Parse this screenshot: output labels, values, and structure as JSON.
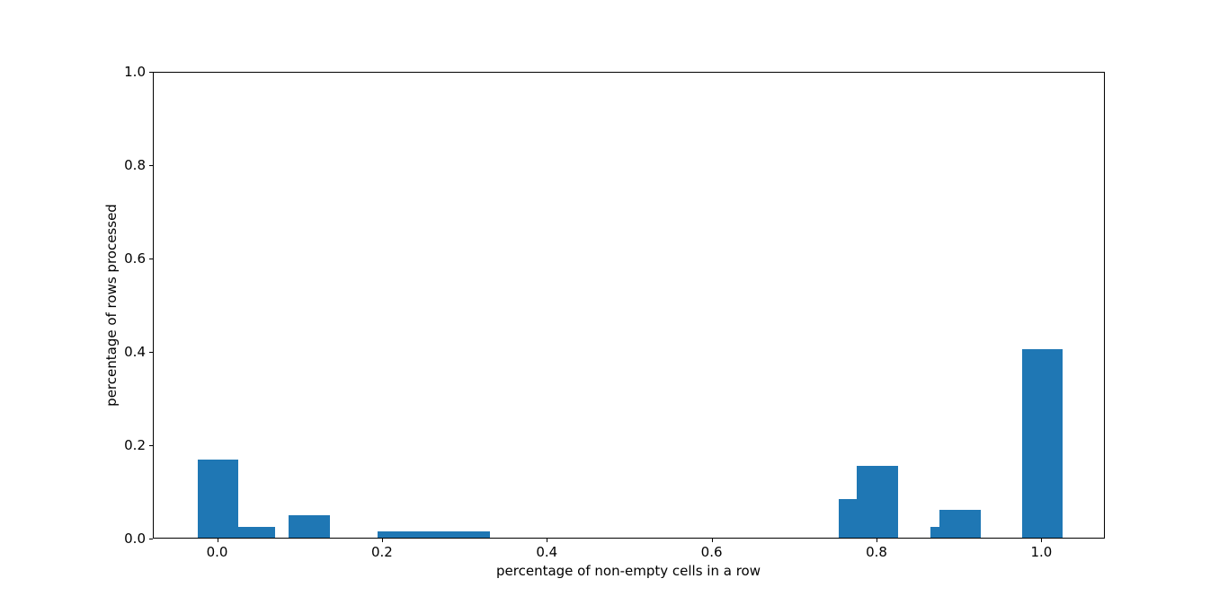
{
  "figure": {
    "background": "#ffffff",
    "text_color": "#000000",
    "axis_color": "#000000"
  },
  "chart_data": {
    "type": "bar",
    "xlabel": "percentage of non-empty cells in a row",
    "ylabel": "percentage of rows processed",
    "xlim": [
      -0.078,
      1.077
    ],
    "ylim": [
      0,
      1
    ],
    "xticks": [
      0.0,
      0.2,
      0.4,
      0.6,
      0.8,
      1.0
    ],
    "xtick_labels": [
      "0.0",
      "0.2",
      "0.4",
      "0.6",
      "0.8",
      "1.0"
    ],
    "yticks": [
      0.0,
      0.2,
      0.4,
      0.6,
      0.8,
      1.0
    ],
    "ytick_labels": [
      "0.0",
      "0.2",
      "0.4",
      "0.6",
      "0.8",
      "1.0"
    ],
    "grid": false,
    "legend": null,
    "bar_color": "#1f77b4",
    "bar_width": 0.05,
    "draw_order_note": "bars are painted in array order; later bars overlap earlier ones",
    "bars": [
      {
        "x": 0.044,
        "height": 0.023
      },
      {
        "x": 0.0,
        "height": 0.167
      },
      {
        "x": 0.111,
        "height": 0.049
      },
      {
        "x": 0.218,
        "height": 0.013
      },
      {
        "x": 0.26,
        "height": 0.013
      },
      {
        "x": 0.305,
        "height": 0.013
      },
      {
        "x": 0.778,
        "height": 0.083
      },
      {
        "x": 0.8,
        "height": 0.154
      },
      {
        "x": 0.889,
        "height": 0.024
      },
      {
        "x": 0.9,
        "height": 0.06
      },
      {
        "x": 1.0,
        "height": 0.404
      }
    ]
  }
}
